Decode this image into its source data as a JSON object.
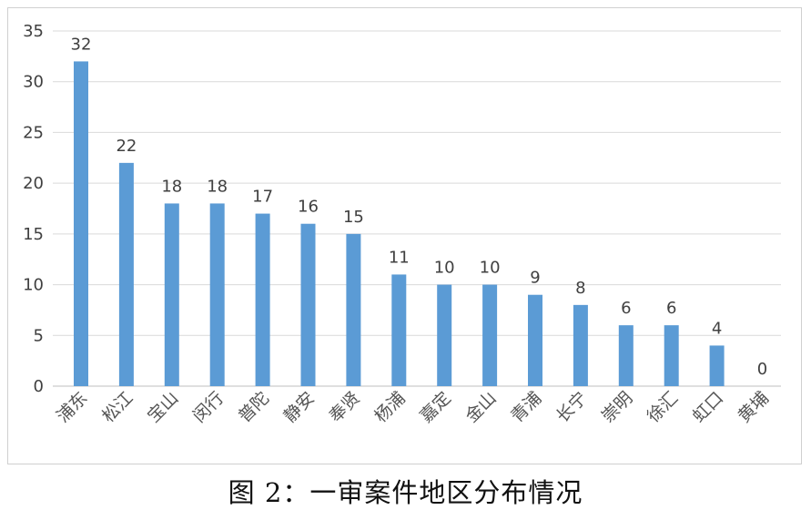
{
  "caption": "图 2：一审案件地区分布情况",
  "chart_data": {
    "type": "bar",
    "title": "",
    "xlabel": "",
    "ylabel": "",
    "categories": [
      "浦东",
      "松江",
      "宝山",
      "闵行",
      "普陀",
      "静安",
      "奉贤",
      "杨浦",
      "嘉定",
      "金山",
      "青浦",
      "长宁",
      "崇明",
      "徐汇",
      "虹口",
      "黄埔"
    ],
    "values": [
      32,
      22,
      18,
      18,
      17,
      16,
      15,
      11,
      10,
      10,
      9,
      8,
      6,
      6,
      4,
      0
    ],
    "ylim": [
      0,
      35
    ],
    "yticks": [
      0,
      5,
      10,
      15,
      20,
      25,
      30,
      35
    ],
    "grid": true,
    "legend": "none",
    "data_labels": true,
    "bar_color": "#5b9bd5"
  }
}
